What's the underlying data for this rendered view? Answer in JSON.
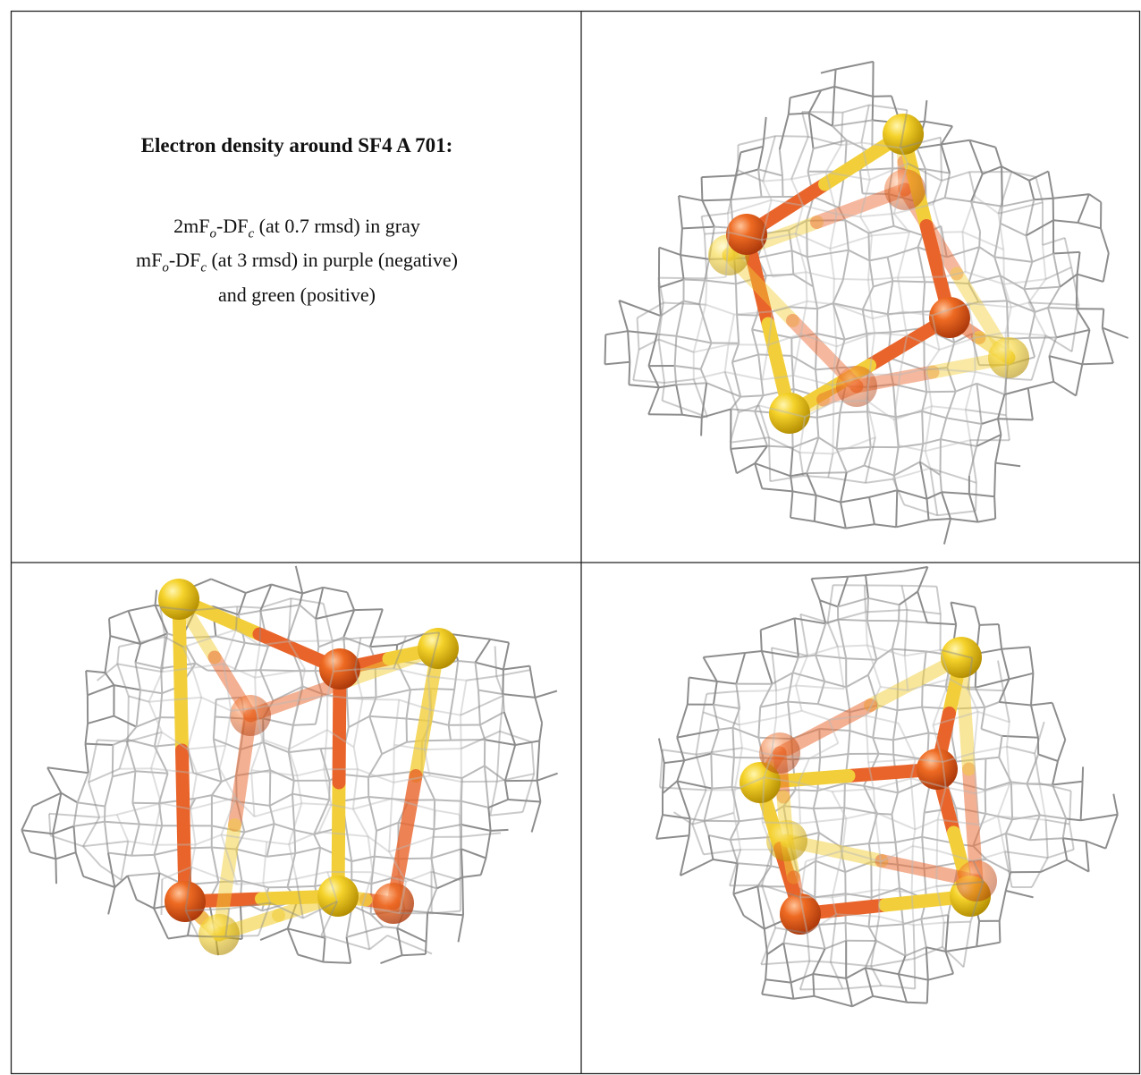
{
  "caption": {
    "title": "Electron density around SF4 A 701:",
    "lines": [
      [
        {
          "text": "2mF"
        },
        {
          "sub": "o"
        },
        {
          "text": "-DF"
        },
        {
          "sub": "c"
        },
        {
          "text": " (at 0.7 rmsd) in gray"
        }
      ],
      [
        {
          "text": "mF"
        },
        {
          "sub": "o"
        },
        {
          "text": "-DF"
        },
        {
          "sub": "c"
        },
        {
          "text": " (at 3 rmsd) in purple (negative)"
        }
      ],
      [
        {
          "text": "and green (positive)"
        }
      ]
    ]
  }
}
